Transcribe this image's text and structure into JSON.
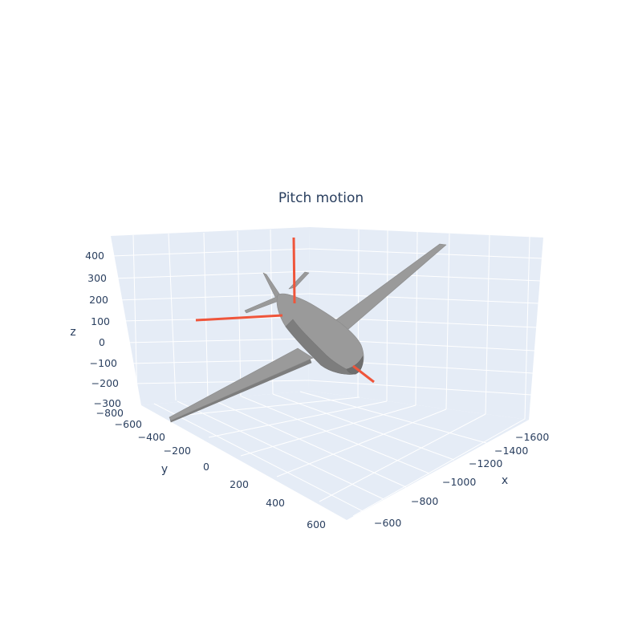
{
  "chart_data": {
    "type": "scatter3d",
    "title": "Pitch motion",
    "axes": {
      "x": {
        "label": "x",
        "ticks": [
          "−1600",
          "−1400",
          "−1200",
          "−1000",
          "−800",
          "−600"
        ],
        "range": [
          -1700,
          -500
        ]
      },
      "y": {
        "label": "y",
        "ticks": [
          "−800",
          "−600",
          "−400",
          "−200",
          "0",
          "200",
          "400",
          "600"
        ],
        "range": [
          -800,
          650
        ]
      },
      "z": {
        "label": "z",
        "ticks": [
          "400",
          "300",
          "200",
          "100",
          "0",
          "−100",
          "−200",
          "−300"
        ],
        "range": [
          -300,
          450
        ]
      }
    },
    "grid": true,
    "traces": [
      {
        "kind": "mesh",
        "name": "aircraft",
        "color": "#999999"
      },
      {
        "kind": "lines",
        "name": "body axes",
        "color": "#ef553b"
      }
    ]
  }
}
